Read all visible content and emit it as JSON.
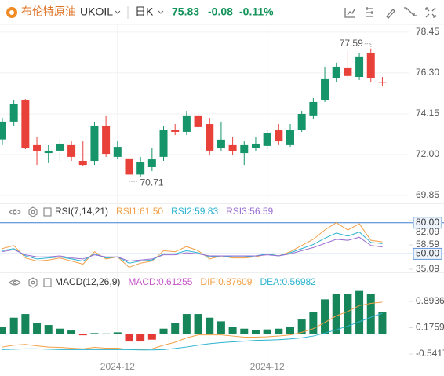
{
  "header": {
    "name": "布伦特原油",
    "symbol": "UKOIL",
    "period": "日K",
    "price": "75.83",
    "change": "-0.08",
    "change_pct": "-0.11%"
  },
  "chart_data": [
    {
      "type": "candlestick",
      "categories": [
        null,
        null,
        null,
        null,
        null,
        null,
        null,
        null,
        null,
        null,
        "2024-12",
        null,
        null,
        null,
        null,
        null,
        null,
        null,
        null,
        null,
        null,
        null,
        null,
        "2024-12",
        null,
        null,
        null,
        null,
        null,
        null,
        null,
        null,
        null,
        null
      ],
      "open": [
        73.74,
        74.65,
        72.37,
        72.17,
        72.21,
        72.58,
        71.88,
        71.46,
        73.53,
        72.04,
        72.41,
        70.95,
        71.59,
        71.75,
        73.32,
        73.2,
        74.03,
        73.45,
        72.21,
        72.79,
        72.17,
        72.5,
        72.58,
        73.12,
        72.7,
        73.32,
        74.15,
        74.77,
        75.97,
        76.63,
        76.14,
        77.17,
        76.01,
        75.8
      ],
      "high": [
        73.94,
        74.85,
        74.93,
        72.91,
        72.5,
        72.79,
        72.7,
        72.7,
        73.74,
        74.03,
        72.7,
        71.88,
        71.88,
        72.37,
        73.53,
        73.61,
        74.27,
        74.15,
        73.94,
        73.74,
        72.91,
        72.7,
        72.91,
        73.32,
        73.61,
        73.61,
        74.27,
        74.98,
        76.63,
        76.84,
        77.46,
        77.33,
        77.59,
        76.09
      ],
      "low": [
        72.5,
        73.53,
        72.29,
        71.46,
        71.55,
        71.67,
        71.67,
        71.38,
        71.46,
        71.88,
        71.75,
        70.71,
        70.8,
        71.13,
        71.67,
        73.03,
        73.03,
        73.32,
        72.0,
        72.17,
        72.0,
        71.46,
        72.21,
        72.29,
        72.5,
        72.41,
        73.2,
        73.86,
        74.77,
        75.8,
        76.01,
        75.93,
        75.8,
        75.6
      ],
      "close": [
        72.8,
        73.74,
        74.85,
        72.5,
        72.08,
        72.21,
        72.5,
        71.67,
        71.67,
        73.53,
        71.88,
        71.8,
        70.95,
        71.34,
        71.88,
        73.32,
        73.2,
        74.03,
        73.61,
        72.37,
        72.5,
        72.08,
        72.37,
        72.46,
        73.28,
        72.5,
        73.32,
        74.03,
        74.85,
        76.01,
        76.59,
        76.09,
        77.33,
        75.83
      ],
      "up_color": "#e8413a",
      "down_color": "#17956a",
      "ylim": [
        69.48,
        78.9
      ],
      "yticks": [
        78.45,
        {
          "value": 76.3,
          "label": "76.30"
        },
        74.15,
        {
          "value": 72,
          "label": "72.00"
        },
        69.85
      ],
      "grid": true
    },
    {
      "type": "line",
      "title": "RSI(7,14,21)",
      "series": [
        {
          "name": "RSI1:61.50",
          "color": "#f3a047",
          "values": [
            55,
            58,
            46,
            43,
            44,
            46,
            43,
            40,
            52,
            45,
            47,
            37,
            41,
            43,
            53,
            52,
            57,
            53,
            45,
            48,
            46,
            46,
            47,
            50,
            48,
            52,
            58,
            64,
            73,
            80,
            73,
            79,
            63,
            61.5
          ]
        },
        {
          "name": "RSI2:59.83",
          "color": "#2bb3cf",
          "values": [
            53,
            55,
            48,
            45,
            46,
            47,
            45,
            43,
            50,
            46,
            47,
            41,
            43,
            44,
            50,
            50,
            53,
            51,
            47,
            48,
            47,
            47,
            48,
            50,
            48,
            51,
            55,
            59,
            65,
            70,
            67,
            71,
            61,
            59.83
          ]
        },
        {
          "name": "RSI3:56.59",
          "color": "#9a6fd2",
          "values": [
            52,
            54,
            49,
            47,
            47,
            48,
            46,
            45,
            49,
            47,
            47,
            43,
            44,
            45,
            49,
            49,
            51,
            50,
            48,
            48,
            48,
            48,
            48,
            49,
            48,
            50,
            53,
            56,
            60,
            64,
            63,
            66,
            58,
            56.59
          ]
        }
      ],
      "ylim": [
        35.09,
        82.09
      ],
      "yticks": [
        82.09,
        58.59,
        35.09
      ],
      "levels": [
        {
          "value": 80,
          "label": "80.00"
        },
        {
          "value": 50,
          "label": "50.00"
        }
      ],
      "level_color": "#3f7fd4"
    },
    {
      "type": "macd",
      "title": "MACD(12,26,9)",
      "bars": {
        "name": "MACD:0.61255",
        "color": "#c757c9",
        "up_color": "#17855a",
        "down_color": "#e53935",
        "values": [
          0.2,
          0.45,
          0.55,
          0.3,
          0.25,
          0.15,
          0.1,
          -0.03,
          0.03,
          0.02,
          0.05,
          -0.2,
          -0.2,
          -0.15,
          0.15,
          0.3,
          0.55,
          0.55,
          0.45,
          0.35,
          0.2,
          0.15,
          0.12,
          0.13,
          0.15,
          0.2,
          0.4,
          0.6,
          0.95,
          1.1,
          1.1,
          1.18,
          1.1,
          0.61255
        ]
      },
      "series": [
        {
          "name": "DIF:0.87609",
          "color": "#f3a047",
          "values": [
            -0.35,
            -0.3,
            -0.28,
            -0.32,
            -0.35,
            -0.36,
            -0.38,
            -0.4,
            -0.36,
            -0.38,
            -0.38,
            -0.42,
            -0.42,
            -0.4,
            -0.3,
            -0.22,
            -0.1,
            -0.02,
            -0.02,
            -0.02,
            -0.05,
            -0.08,
            -0.08,
            -0.07,
            -0.05,
            -0.02,
            0.05,
            0.15,
            0.32,
            0.5,
            0.62,
            0.78,
            0.84,
            0.87609
          ]
        },
        {
          "name": "DEA:0.56982",
          "color": "#2bb3cf",
          "values": [
            -0.42,
            -0.41,
            -0.4,
            -0.4,
            -0.41,
            -0.42,
            -0.42,
            -0.42,
            -0.42,
            -0.42,
            -0.42,
            -0.42,
            -0.43,
            -0.43,
            -0.42,
            -0.39,
            -0.35,
            -0.3,
            -0.26,
            -0.23,
            -0.21,
            -0.19,
            -0.17,
            -0.16,
            -0.15,
            -0.13,
            -0.1,
            -0.05,
            0.03,
            0.12,
            0.22,
            0.34,
            0.46,
            0.56982
          ]
        }
      ],
      "ylim": [
        -0.777,
        1.515
      ],
      "yticks": [
        0.89368,
        0.17598,
        -0.54171
      ]
    }
  ]
}
